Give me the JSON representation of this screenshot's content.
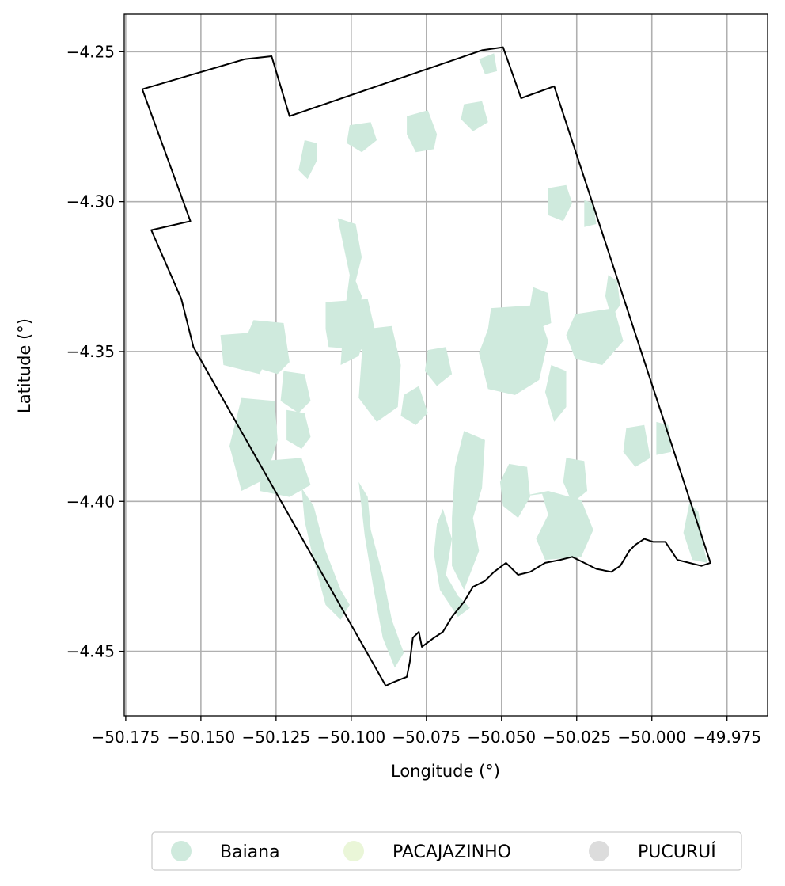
{
  "chart_data": {
    "type": "map",
    "xlabel": "Longitude (°)",
    "ylabel": "Latitude (°)",
    "x_ticks": [
      "−50.175",
      "−50.150",
      "−50.125",
      "−50.100",
      "−50.075",
      "−50.050",
      "−50.025",
      "−50.000",
      "−49.975"
    ],
    "x_tick_values": [
      -50.175,
      -50.15,
      -50.125,
      -50.1,
      -50.075,
      -50.05,
      -50.025,
      -50.0,
      -49.975
    ],
    "y_ticks": [
      "−4.25",
      "−4.30",
      "−4.35",
      "−4.40",
      "−4.45"
    ],
    "y_tick_values": [
      -4.25,
      -4.3,
      -4.35,
      -4.4,
      -4.45
    ],
    "xlim": [
      -50.1755,
      -49.9615
    ],
    "ylim": [
      -4.4715,
      -4.2375
    ],
    "grid": true,
    "legend": {
      "position": "bottom-center",
      "entries": [
        {
          "label": "Baiana",
          "color": "#cfeadd"
        },
        {
          "label": "PACAJAZINHO",
          "color": "#eaf6d8"
        },
        {
          "label": "PUCURUÍ",
          "color": "#dcdcdc"
        }
      ]
    },
    "boundary_outline": [
      [
        -50.1695,
        -4.2625
      ],
      [
        -50.1355,
        -4.2525
      ],
      [
        -50.1265,
        -4.2515
      ],
      [
        -50.1205,
        -4.2715
      ],
      [
        -50.0565,
        -4.2495
      ],
      [
        -50.0495,
        -4.2485
      ],
      [
        -50.0435,
        -4.2655
      ],
      [
        -50.0325,
        -4.2615
      ],
      [
        -49.9805,
        -4.4205
      ],
      [
        -49.9835,
        -4.4215
      ],
      [
        -49.9915,
        -4.4195
      ],
      [
        -49.9955,
        -4.4135
      ],
      [
        -49.9995,
        -4.4135
      ],
      [
        -50.0025,
        -4.4125
      ],
      [
        -50.0055,
        -4.4145
      ],
      [
        -50.0075,
        -4.4165
      ],
      [
        -50.0105,
        -4.4215
      ],
      [
        -50.0135,
        -4.4235
      ],
      [
        -50.0185,
        -4.4225
      ],
      [
        -50.0225,
        -4.4205
      ],
      [
        -50.0265,
        -4.4185
      ],
      [
        -50.0305,
        -4.4195
      ],
      [
        -50.0355,
        -4.4205
      ],
      [
        -50.0405,
        -4.4235
      ],
      [
        -50.0445,
        -4.4245
      ],
      [
        -50.0485,
        -4.4205
      ],
      [
        -50.0525,
        -4.4235
      ],
      [
        -50.0555,
        -4.4265
      ],
      [
        -50.0595,
        -4.4285
      ],
      [
        -50.0625,
        -4.4335
      ],
      [
        -50.0665,
        -4.4385
      ],
      [
        -50.0695,
        -4.4435
      ],
      [
        -50.0725,
        -4.4455
      ],
      [
        -50.0765,
        -4.4485
      ],
      [
        -50.0775,
        -4.4435
      ],
      [
        -50.0795,
        -4.4455
      ],
      [
        -50.0805,
        -4.4535
      ],
      [
        -50.0815,
        -4.4585
      ],
      [
        -50.0865,
        -4.4605
      ],
      [
        -50.0885,
        -4.4615
      ],
      [
        -50.1525,
        -4.3485
      ],
      [
        -50.1565,
        -4.3325
      ],
      [
        -50.1665,
        -4.3095
      ],
      [
        -50.1535,
        -4.3065
      ]
    ],
    "series": [
      {
        "name": "Baiana",
        "color": "#cfeadd",
        "patches": [
          [
            [
              -50.1045,
              -4.3055
            ],
            [
              -50.0985,
              -4.3075
            ],
            [
              -50.0965,
              -4.3185
            ],
            [
              -50.0985,
              -4.3265
            ],
            [
              -50.0965,
              -4.3315
            ],
            [
              -50.0975,
              -4.3385
            ],
            [
              -50.0955,
              -4.3455
            ],
            [
              -50.0975,
              -4.3515
            ],
            [
              -50.1035,
              -4.3545
            ],
            [
              -50.1025,
              -4.3395
            ],
            [
              -50.1005,
              -4.3245
            ]
          ],
          [
            [
              -50.1085,
              -4.3335
            ],
            [
              -50.0945,
              -4.3325
            ],
            [
              -50.0915,
              -4.3455
            ],
            [
              -50.0945,
              -4.3495
            ],
            [
              -50.1075,
              -4.3485
            ],
            [
              -50.1085,
              -4.3425
            ]
          ],
          [
            [
              -50.0955,
              -4.3425
            ],
            [
              -50.0865,
              -4.3415
            ],
            [
              -50.0835,
              -4.3545
            ],
            [
              -50.0845,
              -4.3685
            ],
            [
              -50.0915,
              -4.3735
            ],
            [
              -50.0975,
              -4.3655
            ],
            [
              -50.0965,
              -4.3515
            ]
          ],
          [
            [
              -50.1325,
              -4.3395
            ],
            [
              -50.1225,
              -4.3405
            ],
            [
              -50.1205,
              -4.3535
            ],
            [
              -50.1245,
              -4.3575
            ],
            [
              -50.1345,
              -4.3545
            ],
            [
              -50.1355,
              -4.3465
            ]
          ],
          [
            [
              -50.1435,
              -4.3445
            ],
            [
              -50.1305,
              -4.3435
            ],
            [
              -50.1275,
              -4.3515
            ],
            [
              -50.1305,
              -4.3575
            ],
            [
              -50.1425,
              -4.3545
            ]
          ],
          [
            [
              -50.1225,
              -4.3565
            ],
            [
              -50.1155,
              -4.3575
            ],
            [
              -50.1135,
              -4.3665
            ],
            [
              -50.1175,
              -4.3705
            ],
            [
              -50.1235,
              -4.3665
            ]
          ],
          [
            [
              -50.1365,
              -4.3655
            ],
            [
              -50.1255,
              -4.3665
            ],
            [
              -50.1245,
              -4.3795
            ],
            [
              -50.1285,
              -4.3925
            ],
            [
              -50.1365,
              -4.3965
            ],
            [
              -50.1405,
              -4.3815
            ]
          ],
          [
            [
              -50.1215,
              -4.3695
            ],
            [
              -50.1155,
              -4.3705
            ],
            [
              -50.1135,
              -4.3785
            ],
            [
              -50.1165,
              -4.3825
            ],
            [
              -50.1215,
              -4.3795
            ]
          ],
          [
            [
              -50.1295,
              -4.3865
            ],
            [
              -50.1165,
              -4.3855
            ],
            [
              -50.1135,
              -4.3945
            ],
            [
              -50.1205,
              -4.3985
            ],
            [
              -50.1305,
              -4.3965
            ]
          ],
          [
            [
              -50.1165,
              -4.3955
            ],
            [
              -50.1125,
              -4.4015
            ],
            [
              -50.1085,
              -4.4165
            ],
            [
              -50.1035,
              -4.4295
            ],
            [
              -50.1005,
              -4.4345
            ],
            [
              -50.1035,
              -4.4395
            ],
            [
              -50.1085,
              -4.4345
            ],
            [
              -50.1125,
              -4.4195
            ],
            [
              -50.1155,
              -4.4065
            ]
          ],
          [
            [
              -50.0975,
              -4.3935
            ],
            [
              -50.0945,
              -4.3985
            ],
            [
              -50.0935,
              -4.4095
            ],
            [
              -50.0895,
              -4.4245
            ],
            [
              -50.0865,
              -4.4395
            ],
            [
              -50.0825,
              -4.4505
            ],
            [
              -50.0855,
              -4.4555
            ],
            [
              -50.0895,
              -4.4455
            ],
            [
              -50.0925,
              -4.4295
            ],
            [
              -50.0955,
              -4.4115
            ]
          ],
          [
            [
              -50.0825,
              -4.3645
            ],
            [
              -50.0775,
              -4.3615
            ],
            [
              -50.0745,
              -4.3705
            ],
            [
              -50.0785,
              -4.3745
            ],
            [
              -50.0835,
              -4.3715
            ]
          ],
          [
            [
              -50.0745,
              -4.3495
            ],
            [
              -50.0685,
              -4.3485
            ],
            [
              -50.0665,
              -4.3575
            ],
            [
              -50.0715,
              -4.3615
            ],
            [
              -50.0755,
              -4.3565
            ]
          ],
          [
            [
              -50.0625,
              -4.3765
            ],
            [
              -50.0555,
              -4.3795
            ],
            [
              -50.0565,
              -4.3955
            ],
            [
              -50.0595,
              -4.4055
            ],
            [
              -50.0575,
              -4.4165
            ],
            [
              -50.0625,
              -4.4295
            ],
            [
              -50.0665,
              -4.4215
            ],
            [
              -50.0665,
              -4.4055
            ],
            [
              -50.0655,
              -4.3885
            ]
          ],
          [
            [
              -50.0695,
              -4.4025
            ],
            [
              -50.0665,
              -4.4125
            ],
            [
              -50.0685,
              -4.4245
            ],
            [
              -50.0645,
              -4.4315
            ],
            [
              -50.0605,
              -4.4355
            ],
            [
              -50.0645,
              -4.4385
            ],
            [
              -50.0705,
              -4.4295
            ],
            [
              -50.0725,
              -4.4175
            ],
            [
              -50.0715,
              -4.4075
            ]
          ],
          [
            [
              -50.0535,
              -4.3355
            ],
            [
              -50.0385,
              -4.3345
            ],
            [
              -50.0345,
              -4.3465
            ],
            [
              -50.0375,
              -4.3595
            ],
            [
              -50.0455,
              -4.3645
            ],
            [
              -50.0545,
              -4.3625
            ],
            [
              -50.0575,
              -4.3505
            ],
            [
              -50.0545,
              -4.3425
            ]
          ],
          [
            [
              -50.0395,
              -4.3285
            ],
            [
              -50.0345,
              -4.3305
            ],
            [
              -50.0335,
              -4.3405
            ],
            [
              -50.0385,
              -4.3425
            ],
            [
              -50.0405,
              -4.3345
            ]
          ],
          [
            [
              -50.0335,
              -4.3545
            ],
            [
              -50.0285,
              -4.3565
            ],
            [
              -50.0285,
              -4.3685
            ],
            [
              -50.0325,
              -4.3735
            ],
            [
              -50.0355,
              -4.3635
            ]
          ],
          [
            [
              -50.0255,
              -4.3375
            ],
            [
              -50.0125,
              -4.3355
            ],
            [
              -50.0095,
              -4.3465
            ],
            [
              -50.0165,
              -4.3545
            ],
            [
              -50.0255,
              -4.3525
            ],
            [
              -50.0285,
              -4.3445
            ]
          ],
          [
            [
              -50.0145,
              -4.3245
            ],
            [
              -50.0115,
              -4.3265
            ],
            [
              -50.0105,
              -4.3345
            ],
            [
              -50.0135,
              -4.3385
            ],
            [
              -50.0155,
              -4.3315
            ]
          ],
          [
            [
              -50.0475,
              -4.3875
            ],
            [
              -50.0415,
              -4.3885
            ],
            [
              -50.0405,
              -4.3985
            ],
            [
              -50.0445,
              -4.4055
            ],
            [
              -50.0495,
              -4.4015
            ],
            [
              -50.0505,
              -4.3935
            ]
          ],
          [
            [
              -50.0285,
              -4.3855
            ],
            [
              -50.0225,
              -4.3865
            ],
            [
              -50.0215,
              -4.3965
            ],
            [
              -50.0265,
              -4.4005
            ],
            [
              -50.0295,
              -4.3935
            ]
          ],
          [
            [
              -50.0445,
              -4.3985
            ],
            [
              -50.0365,
              -4.3975
            ],
            [
              -50.0345,
              -4.4045
            ],
            [
              -50.0385,
              -4.4125
            ],
            [
              -50.0355,
              -4.4195
            ],
            [
              -50.0235,
              -4.4185
            ],
            [
              -50.0195,
              -4.4095
            ],
            [
              -50.0235,
              -4.3995
            ],
            [
              -50.0345,
              -4.3965
            ]
          ],
          [
            [
              -50.0085,
              -4.3755
            ],
            [
              -50.0025,
              -4.3745
            ],
            [
              -50.0005,
              -4.3855
            ],
            [
              -50.0055,
              -4.3885
            ],
            [
              -50.0095,
              -4.3835
            ]
          ],
          [
            [
              -49.9985,
              -4.3735
            ],
            [
              -49.9945,
              -4.3745
            ],
            [
              -49.9935,
              -4.3835
            ],
            [
              -49.9985,
              -4.3845
            ]
          ],
          [
            [
              -49.9875,
              -4.4005
            ],
            [
              -49.9845,
              -4.4035
            ],
            [
              -49.9825,
              -4.4165
            ],
            [
              -49.9815,
              -4.4205
            ],
            [
              -49.9865,
              -4.4195
            ],
            [
              -49.9895,
              -4.4105
            ]
          ],
          [
            [
              -50.0625,
              -4.2675
            ],
            [
              -50.0565,
              -4.2665
            ],
            [
              -50.0545,
              -4.2735
            ],
            [
              -50.0595,
              -4.2765
            ],
            [
              -50.0635,
              -4.2725
            ]
          ],
          [
            [
              -50.0815,
              -4.2715
            ],
            [
              -50.0745,
              -4.2695
            ],
            [
              -50.0715,
              -4.2775
            ],
            [
              -50.0725,
              -4.2825
            ],
            [
              -50.0785,
              -4.2835
            ],
            [
              -50.0815,
              -4.2775
            ]
          ],
          [
            [
              -50.0575,
              -4.2525
            ],
            [
              -50.0525,
              -4.2505
            ],
            [
              -50.0515,
              -4.2565
            ],
            [
              -50.0555,
              -4.2575
            ]
          ],
          [
            [
              -50.1005,
              -4.2745
            ],
            [
              -50.0935,
              -4.2735
            ],
            [
              -50.0915,
              -4.2795
            ],
            [
              -50.0965,
              -4.2835
            ],
            [
              -50.1015,
              -4.2805
            ]
          ],
          [
            [
              -50.1155,
              -4.2795
            ],
            [
              -50.1115,
              -4.2805
            ],
            [
              -50.1115,
              -4.2865
            ],
            [
              -50.1145,
              -4.2925
            ],
            [
              -50.1175,
              -4.2895
            ]
          ],
          [
            [
              -50.0345,
              -4.2955
            ],
            [
              -50.0285,
              -4.2945
            ],
            [
              -50.0265,
              -4.3005
            ],
            [
              -50.0295,
              -4.3065
            ],
            [
              -50.0345,
              -4.3045
            ]
          ],
          [
            [
              -50.0225,
              -4.2995
            ],
            [
              -50.0195,
              -4.3005
            ],
            [
              -50.0185,
              -4.3075
            ],
            [
              -50.0225,
              -4.3085
            ]
          ]
        ]
      }
    ]
  }
}
